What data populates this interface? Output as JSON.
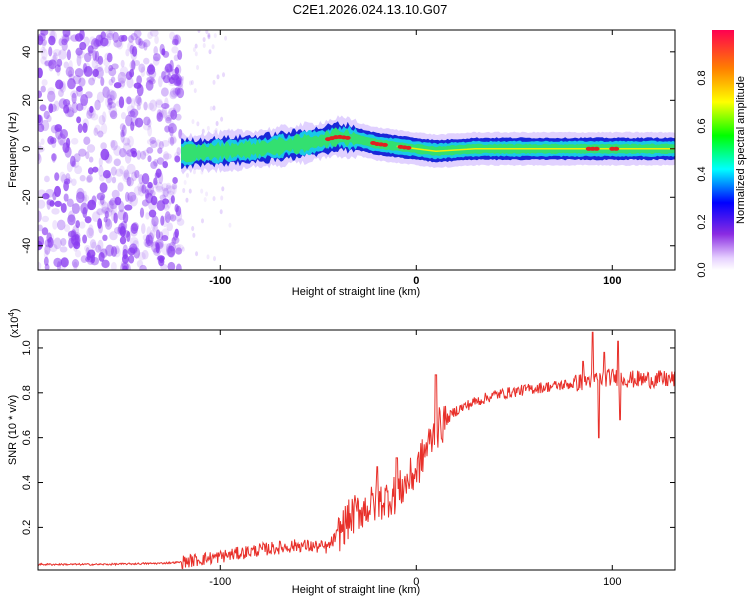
{
  "title": "C2E1.2026.024.13.10.G07",
  "colors": {
    "snr_line": "#e8302a",
    "noise_cloud": "#8a3cf0",
    "ridge_edge": "#1a26d8",
    "ridge_core": "#33e070",
    "ridge_peak": "#e22020",
    "axis": "#000000"
  },
  "chart_data": [
    {
      "type": "heatmap",
      "name": "spectrogram",
      "title": "C2E1.2026.024.13.10.G07",
      "xlabel": "Height of straight line (km)",
      "ylabel": "Frequency (Hz)",
      "xlim": [
        -193,
        132
      ],
      "ylim": [
        -50,
        49
      ],
      "x_ticks": [
        {
          "v": -100,
          "label": "-100"
        },
        {
          "v": 0,
          "label": "0"
        },
        {
          "v": 100,
          "label": "100"
        }
      ],
      "y_ticks": [
        {
          "v": -40,
          "label": "-40"
        },
        {
          "v": -20,
          "label": "-20"
        },
        {
          "v": 0,
          "label": "0"
        },
        {
          "v": 20,
          "label": "20"
        },
        {
          "v": 40,
          "label": "40"
        }
      ],
      "noise_region_x": [
        -193,
        -120
      ],
      "ridge": {
        "x": [
          -120,
          -100,
          -80,
          -60,
          -50,
          -40,
          -30,
          -20,
          -10,
          0,
          10,
          30,
          60,
          90,
          132
        ],
        "freq": [
          -2,
          -1,
          0,
          2,
          3,
          5,
          4,
          2,
          1,
          0,
          -1,
          0,
          0,
          0,
          0
        ],
        "peak_segments": [
          [
            -45,
            -35
          ],
          [
            -22,
            -15
          ],
          [
            -8,
            -3
          ],
          [
            88,
            92
          ],
          [
            100,
            103
          ]
        ]
      },
      "colorbar": {
        "label": "Normalized spectral amplitude",
        "range": [
          0,
          1
        ],
        "ticks": [
          {
            "v": 0.0,
            "label": "0.0"
          },
          {
            "v": 0.2,
            "label": "0.2"
          },
          {
            "v": 0.4,
            "label": "0.4"
          },
          {
            "v": 0.6,
            "label": "0.6"
          },
          {
            "v": 0.8,
            "label": "0.8"
          }
        ]
      }
    },
    {
      "type": "line",
      "name": "snr",
      "xlabel": "Height of straight line (km)",
      "ylabel": "SNR (10 * v/v)",
      "y_multiplier": "(x10",
      "y_multiplier_exp": "4",
      "xlim": [
        -193,
        132
      ],
      "ylim": [
        0.01,
        1.08
      ],
      "x_ticks": [
        {
          "v": -100,
          "label": "-100"
        },
        {
          "v": 0,
          "label": "0"
        },
        {
          "v": 100,
          "label": "100"
        }
      ],
      "y_ticks": [
        {
          "v": 0.2,
          "label": "0.2"
        },
        {
          "v": 0.4,
          "label": "0.4"
        },
        {
          "v": 0.6,
          "label": "0.6"
        },
        {
          "v": 0.8,
          "label": "0.8"
        },
        {
          "v": 1.0,
          "label": "1.0"
        }
      ],
      "x": [
        -193,
        -160,
        -130,
        -120,
        -100,
        -80,
        -60,
        -45,
        -40,
        -35,
        -30,
        -20,
        -10,
        0,
        5,
        10,
        20,
        30,
        40,
        60,
        80,
        90,
        100,
        110,
        132
      ],
      "y": [
        0.035,
        0.035,
        0.04,
        0.045,
        0.07,
        0.1,
        0.12,
        0.11,
        0.17,
        0.23,
        0.27,
        0.31,
        0.35,
        0.45,
        0.55,
        0.63,
        0.72,
        0.76,
        0.79,
        0.82,
        0.84,
        0.86,
        0.87,
        0.86,
        0.86
      ],
      "spikes": [
        {
          "x": -20,
          "y": 0.47
        },
        {
          "x": -10,
          "y": 0.51
        },
        {
          "x": 10,
          "y": 0.88
        },
        {
          "x": 90,
          "y": 1.07
        },
        {
          "x": 93,
          "y": 0.6
        },
        {
          "x": 103,
          "y": 1.03
        },
        {
          "x": 104,
          "y": 0.68
        },
        {
          "x": 85,
          "y": 0.94
        },
        {
          "x": 96,
          "y": 0.98
        }
      ]
    }
  ]
}
